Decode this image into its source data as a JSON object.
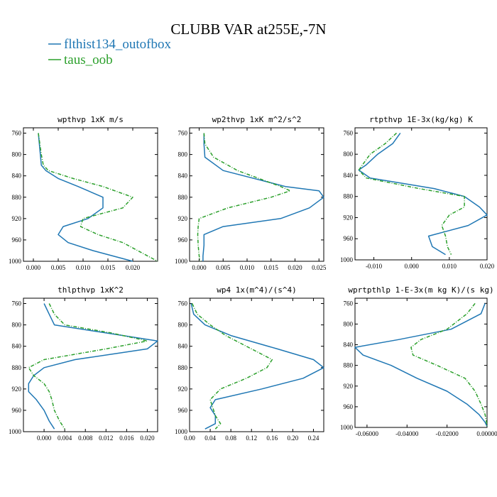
{
  "figure": {
    "title": "CLUBB VAR at255E,-7N",
    "legend": [
      {
        "label": "flthist134_outofbox",
        "color": "#1f77b4",
        "style": "solid"
      },
      {
        "label": "taus_oob",
        "color": "#2ca02c",
        "style": "dashed"
      }
    ]
  },
  "chart_data": [
    {
      "type": "line",
      "title": "wpthvp  1xK m/s",
      "ylabel": "",
      "xlabel": "",
      "ylim": [
        1000,
        750
      ],
      "xlim": [
        -0.002,
        0.025
      ],
      "yticks": [
        "760",
        "800",
        "840",
        "880",
        "920",
        "960",
        "1000"
      ],
      "xticks": [
        "0.000",
        "0.005",
        "0.010",
        "0.015",
        "0.020"
      ],
      "levels": [
        760,
        780,
        800,
        820,
        830,
        845,
        860,
        880,
        900,
        920,
        935,
        950,
        965,
        980,
        1000
      ],
      "series": [
        {
          "name": "flthist134_outofbox",
          "values": [
            0.001,
            0.0012,
            0.0014,
            0.0016,
            0.0025,
            0.005,
            0.009,
            0.014,
            0.014,
            0.011,
            0.006,
            0.005,
            0.007,
            0.012,
            0.02
          ]
        },
        {
          "name": "taus_oob",
          "values": [
            0.001,
            0.0013,
            0.0016,
            0.002,
            0.003,
            0.008,
            0.014,
            0.02,
            0.018,
            0.01,
            0.0095,
            0.013,
            0.018,
            0.021,
            0.025
          ]
        }
      ]
    },
    {
      "type": "line",
      "title": "wp2thvp  1xK m^2/s^2",
      "ylabel": "",
      "xlabel": "",
      "ylim": [
        1000,
        750
      ],
      "xlim": [
        -0.002,
        0.026
      ],
      "yticks": [
        "760",
        "800",
        "840",
        "880",
        "920",
        "960",
        "1000"
      ],
      "xticks": [
        "0.000",
        "0.005",
        "0.010",
        "0.015",
        "0.020",
        "0.025"
      ],
      "levels": [
        760,
        780,
        805,
        830,
        860,
        868,
        880,
        900,
        920,
        935,
        950,
        970,
        990,
        1000
      ],
      "series": [
        {
          "name": "flthist134_outofbox",
          "values": [
            0.001,
            0.001,
            0.0012,
            0.005,
            0.018,
            0.025,
            0.026,
            0.023,
            0.017,
            0.005,
            0.001,
            0.001,
            0.0008,
            0.0008
          ]
        },
        {
          "name": "taus_oob",
          "values": [
            0.001,
            0.0012,
            0.003,
            0.008,
            0.017,
            0.019,
            0.015,
            0.006,
            0.0,
            -0.0002,
            -0.0003,
            -0.0002,
            0.0,
            0.0002
          ]
        }
      ]
    },
    {
      "type": "line",
      "title": "rtpthvp  1E-3x(kg/kg) K",
      "ylabel": "",
      "xlabel": "",
      "ylim": [
        1000,
        750
      ],
      "xlim": [
        -0.015,
        0.02
      ],
      "yticks": [
        "760",
        "800",
        "840",
        "880",
        "920",
        "960",
        "1000"
      ],
      "xticks": [
        "-0.010",
        "0.000",
        "0.010",
        "0.020"
      ],
      "levels": [
        760,
        780,
        800,
        820,
        830,
        845,
        865,
        880,
        900,
        915,
        935,
        955,
        975,
        990
      ],
      "series": [
        {
          "name": "flthist134_outofbox",
          "values": [
            -0.003,
            -0.005,
            -0.009,
            -0.012,
            -0.014,
            -0.011,
            0.006,
            0.014,
            0.018,
            0.02,
            0.015,
            0.0045,
            0.0055,
            0.009
          ]
        },
        {
          "name": "taus_oob",
          "values": [
            -0.004,
            -0.007,
            -0.011,
            -0.013,
            -0.014,
            -0.012,
            0.002,
            0.014,
            0.014,
            0.01,
            0.008,
            0.009,
            0.0095,
            0.0105
          ]
        }
      ]
    },
    {
      "type": "line",
      "title": "thlpthvp  1xK^2",
      "ylabel": "",
      "xlabel": "",
      "ylim": [
        1000,
        750
      ],
      "xlim": [
        -0.004,
        0.022
      ],
      "yticks": [
        "760",
        "800",
        "840",
        "880",
        "920",
        "960",
        "1000"
      ],
      "xticks": [
        "0.000",
        "0.004",
        "0.008",
        "0.012",
        "0.016",
        "0.020"
      ],
      "levels": [
        760,
        780,
        800,
        815,
        830,
        845,
        865,
        880,
        895,
        910,
        925,
        940,
        960,
        980,
        995
      ],
      "series": [
        {
          "name": "flthist134_outofbox",
          "values": [
            0.0,
            0.001,
            0.002,
            0.012,
            0.022,
            0.02,
            0.006,
            0.0,
            -0.002,
            -0.003,
            -0.003,
            -0.0015,
            0.0,
            0.001,
            0.002
          ]
        },
        {
          "name": "taus_oob",
          "values": [
            0.001,
            0.002,
            0.004,
            0.013,
            0.02,
            0.012,
            0.0,
            -0.003,
            -0.002,
            0.0,
            0.001,
            0.0015,
            0.002,
            0.003,
            0.004
          ]
        }
      ]
    },
    {
      "type": "line",
      "title": "wp4  1x(m^4)/(s^4)",
      "ylabel": "",
      "xlabel": "",
      "ylim": [
        1000,
        750
      ],
      "xlim": [
        0.0,
        0.26
      ],
      "yticks": [
        "760",
        "800",
        "840",
        "880",
        "920",
        "960",
        "1000"
      ],
      "xticks": [
        "0.00",
        "0.04",
        "0.08",
        "0.12",
        "0.16",
        "0.20",
        "0.24"
      ],
      "levels": [
        760,
        780,
        800,
        820,
        845,
        865,
        880,
        900,
        920,
        940,
        955,
        970,
        985,
        995
      ],
      "series": [
        {
          "name": "flthist134_outofbox",
          "values": [
            0.003,
            0.008,
            0.03,
            0.08,
            0.17,
            0.24,
            0.26,
            0.22,
            0.14,
            0.05,
            0.04,
            0.05,
            0.05,
            0.03
          ]
        },
        {
          "name": "taus_oob",
          "values": [
            0.005,
            0.015,
            0.04,
            0.07,
            0.12,
            0.16,
            0.15,
            0.11,
            0.06,
            0.04,
            0.045,
            0.05,
            0.06,
            0.05
          ]
        }
      ]
    },
    {
      "type": "line",
      "title": "wprtpthlp  1-E-3x(m kg K)/(s kg)",
      "ylabel": "",
      "xlabel": "",
      "ylim": [
        1000,
        750
      ],
      "xlim": [
        -0.066,
        0.0
      ],
      "yticks": [
        "760",
        "800",
        "840",
        "880",
        "920",
        "960",
        "1000"
      ],
      "xticks": [
        "-0.06000",
        "-0.04000",
        "-0.02000",
        "0.00000"
      ],
      "levels": [
        760,
        780,
        810,
        830,
        845,
        860,
        880,
        905,
        930,
        955,
        975,
        990,
        998
      ],
      "series": [
        {
          "name": "flthist134_outofbox",
          "values": [
            -0.001,
            -0.003,
            -0.018,
            -0.044,
            -0.066,
            -0.062,
            -0.048,
            -0.035,
            -0.02,
            -0.01,
            -0.004,
            -0.001,
            0.0
          ]
        },
        {
          "name": "taus_oob",
          "values": [
            -0.006,
            -0.01,
            -0.02,
            -0.033,
            -0.038,
            -0.037,
            -0.025,
            -0.011,
            -0.006,
            -0.003,
            -0.001,
            -0.0003,
            0.0
          ]
        }
      ]
    }
  ]
}
